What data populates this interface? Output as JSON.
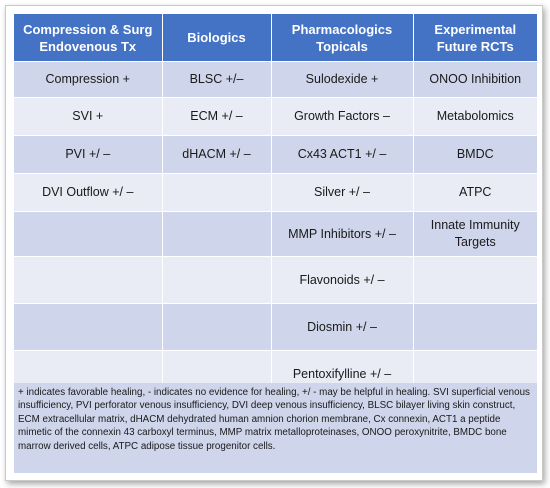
{
  "table": {
    "headers": [
      "Compression & Surg Endovenous Tx",
      "Biologics",
      "Pharmacologics Topicals",
      "Experimental Future RCTs"
    ],
    "rows": [
      [
        "Compression +",
        "BLSC +/–",
        "Sulodexide +",
        "ONOO Inhibition"
      ],
      [
        "SVI +",
        "ECM +/ –",
        "Growth Factors –",
        "Metabolomics"
      ],
      [
        "PVI +/ –",
        "dHACM +/ –",
        "Cx43 ACT1 +/ –",
        "BMDC"
      ],
      [
        "DVI Outflow +/ –",
        "",
        "Silver +/ –",
        "ATPC"
      ],
      [
        "",
        "",
        "MMP Inhibitors +/ –",
        "Innate Immunity Targets"
      ],
      [
        "",
        "",
        "Flavonoids +/ –",
        ""
      ],
      [
        "",
        "",
        "Diosmin +/ –",
        ""
      ],
      [
        "",
        "",
        "Pentoxifylline +/ –",
        ""
      ]
    ]
  },
  "footnote": "+ indicates favorable healing, - indicates no evidence for healing, +/ - may be helpful in healing. SVI superficial venous insufficiency, PVI perforator venous insufficiency, DVI deep venous insufficiency, BLSC bilayer living skin construct, ECM extracellular matrix, dHACM dehydrated human amnion chorion membrane, Cx connexin, ACT1 a peptide mimetic of the connexin 43 carboxyl terminus, MMP matrix metalloproteinases, ONOO peroxynitrite, BMDC bone marrow derived cells, ATPC adipose tissue progenitor cells.",
  "colors": {
    "header_bg": "#4472c4",
    "band_dark": "#cfd5ea",
    "band_light": "#e9ebf5"
  }
}
